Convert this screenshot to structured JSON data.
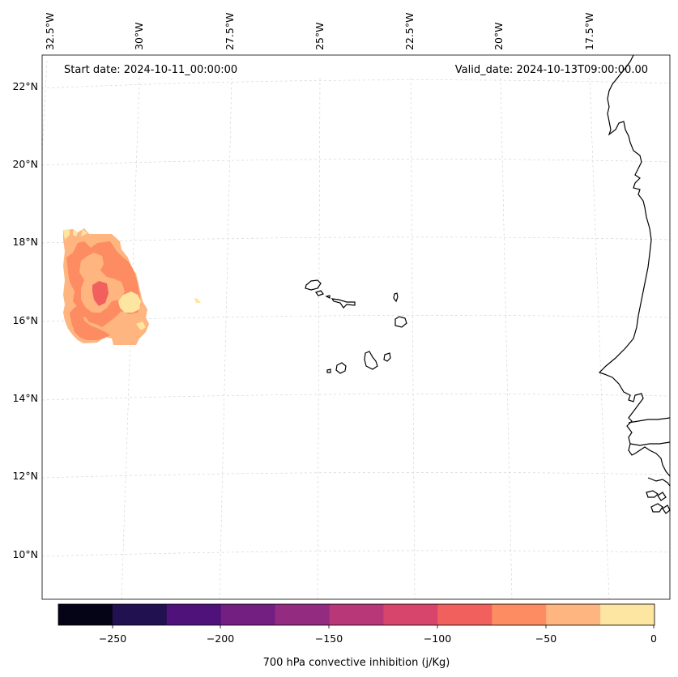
{
  "map": {
    "start_label": "Start date: 2024-10-11_00:00:00",
    "valid_label": "Valid_date: 2024-10-13T09:00:00.00",
    "lon_ticks": [
      "32.5°W",
      "30°W",
      "27.5°W",
      "25°W",
      "22.5°W",
      "20°W",
      "17.5°W"
    ],
    "lat_ticks": [
      "22°N",
      "20°N",
      "18°N",
      "16°N",
      "14°N",
      "12°N",
      "10°N"
    ]
  },
  "colorbar": {
    "label": "700 hPa convective inhibition (j/Kg)",
    "ticks": [
      "−250",
      "−200",
      "−150",
      "−100",
      "−50",
      "0"
    ],
    "colors": [
      "#050416",
      "#221150",
      "#4f127b",
      "#721f81",
      "#932b80",
      "#b73779",
      "#d8456c",
      "#f1605d",
      "#fd8c63",
      "#feb57f",
      "#fde6a2"
    ]
  },
  "chart_data": {
    "type": "heatmap",
    "title": "",
    "variable": "700 hPa convective inhibition",
    "units": "j/Kg",
    "start_date": "2024-10-11_00:00:00",
    "valid_date": "2024-10-13T09:00:00.00",
    "lon_range": [
      -33,
      -15
    ],
    "lat_range": [
      9,
      23
    ],
    "lon_ticks": [
      -32.5,
      -30,
      -27.5,
      -25,
      -22.5,
      -20,
      -17.5
    ],
    "lat_ticks": [
      22,
      20,
      18,
      16,
      14,
      12,
      10
    ],
    "color_levels": [
      -275,
      -250,
      -225,
      -200,
      -175,
      -150,
      -125,
      -100,
      -75,
      -50,
      -25,
      0
    ],
    "colorbar_ticks": [
      -250,
      -200,
      -150,
      -100,
      -50,
      0
    ],
    "features": [
      {
        "name": "convective-inhibition-patch",
        "lon_range": [
          -32.5,
          -30
        ],
        "lat_range": [
          15.2,
          18.2
        ],
        "value_range": [
          -100,
          0
        ]
      },
      {
        "name": "cape-verde-islands",
        "lon_range": [
          -25.5,
          -22.5
        ],
        "lat_range": [
          14.7,
          17.2
        ]
      },
      {
        "name": "west-africa-coast",
        "lon_range": [
          -17.5,
          -15
        ],
        "lat_range": [
          10.5,
          22.5
        ]
      }
    ]
  }
}
